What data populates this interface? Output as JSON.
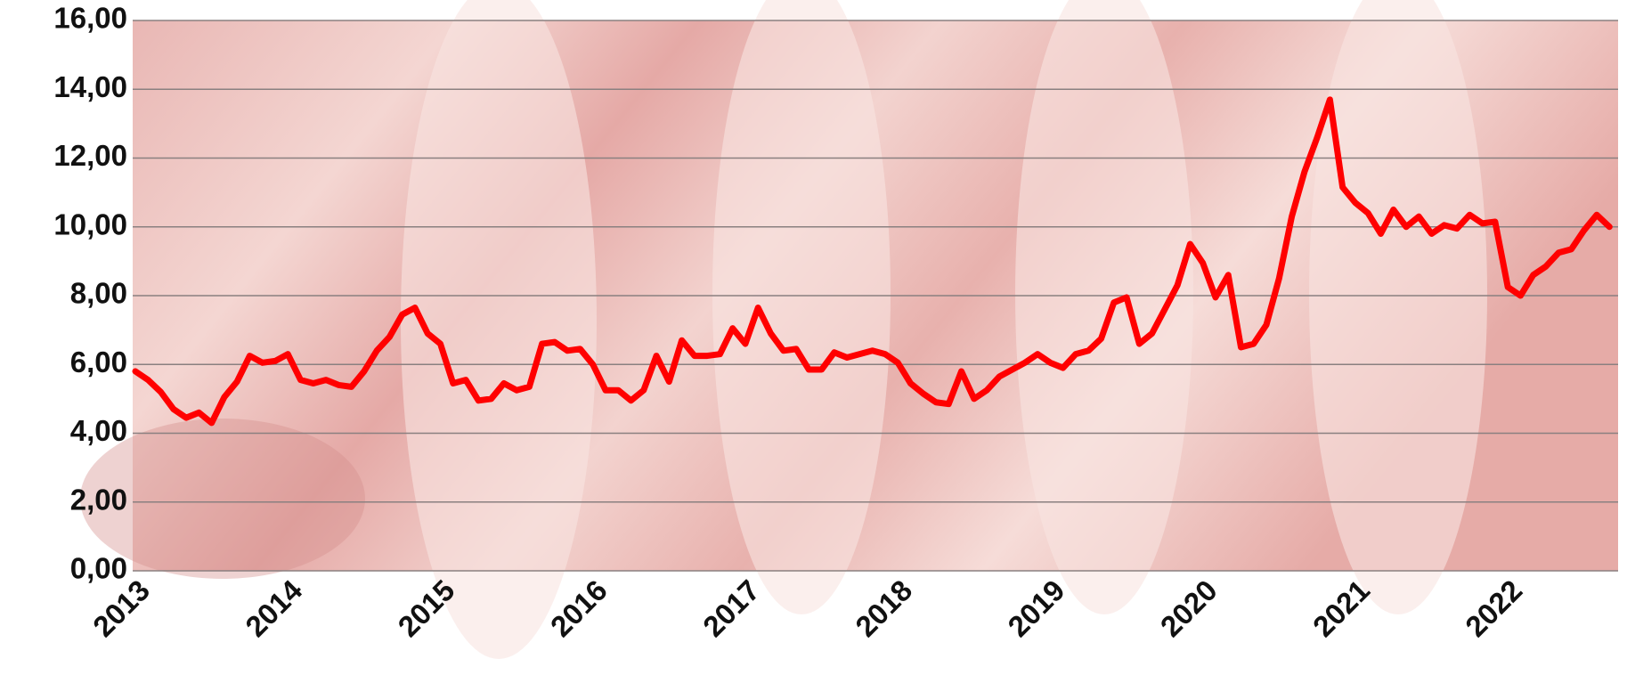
{
  "chart_data": {
    "type": "line",
    "categories": [
      "2013",
      null,
      null,
      null,
      null,
      null,
      null,
      null,
      null,
      null,
      null,
      null,
      "2014",
      null,
      null,
      null,
      null,
      null,
      null,
      null,
      null,
      null,
      null,
      null,
      "2015",
      null,
      null,
      null,
      null,
      null,
      null,
      null,
      null,
      null,
      null,
      null,
      "2016",
      null,
      null,
      null,
      null,
      null,
      null,
      null,
      null,
      null,
      null,
      null,
      "2017",
      null,
      null,
      null,
      null,
      null,
      null,
      null,
      null,
      null,
      null,
      null,
      "2018",
      null,
      null,
      null,
      null,
      null,
      null,
      null,
      null,
      null,
      null,
      null,
      "2019",
      null,
      null,
      null,
      null,
      null,
      null,
      null,
      null,
      null,
      null,
      null,
      "2020",
      null,
      null,
      null,
      null,
      null,
      null,
      null,
      null,
      null,
      null,
      null,
      "2021",
      null,
      null,
      null,
      null,
      null,
      null,
      null,
      null,
      null,
      null,
      null,
      "2022",
      null,
      null,
      null,
      null,
      null,
      null,
      null,
      null
    ],
    "series": [
      {
        "color": "#ff0000",
        "values": [
          5.8,
          5.55,
          5.2,
          4.7,
          4.45,
          4.6,
          4.3,
          5.05,
          5.5,
          6.25,
          6.05,
          6.1,
          6.3,
          5.55,
          5.45,
          5.55,
          5.4,
          5.35,
          5.8,
          6.4,
          6.8,
          7.45,
          7.65,
          6.9,
          6.6,
          5.45,
          5.55,
          4.95,
          5.0,
          5.45,
          5.25,
          5.35,
          6.6,
          6.65,
          6.4,
          6.45,
          6.0,
          5.25,
          5.25,
          4.95,
          5.25,
          6.25,
          5.5,
          6.7,
          6.25,
          6.25,
          6.3,
          7.05,
          6.6,
          7.65,
          6.9,
          6.4,
          6.45,
          5.85,
          5.85,
          6.35,
          6.2,
          6.3,
          6.4,
          6.3,
          6.05,
          5.45,
          5.15,
          4.9,
          4.85,
          5.8,
          5.0,
          5.25,
          5.65,
          5.85,
          6.05,
          6.3,
          6.05,
          5.9,
          6.3,
          6.4,
          6.75,
          7.8,
          7.95,
          6.6,
          6.9,
          7.6,
          8.3,
          9.5,
          8.95,
          7.95,
          8.6,
          6.5,
          6.6,
          7.15,
          8.5,
          10.3,
          11.6,
          12.6,
          13.7,
          11.15,
          10.7,
          10.4,
          9.8,
          10.5,
          10.0,
          10.3,
          9.8,
          10.05,
          9.95,
          10.35,
          10.1,
          10.15,
          8.25,
          8.0,
          8.6,
          8.85,
          9.25,
          9.35,
          9.9,
          10.35,
          10.0
        ]
      }
    ],
    "ylim": [
      0,
      16
    ],
    "yticks": [
      {
        "value": 0,
        "label": "0,00"
      },
      {
        "value": 2,
        "label": "2,00"
      },
      {
        "value": 4,
        "label": "4,00"
      },
      {
        "value": 6,
        "label": "6,00"
      },
      {
        "value": 8,
        "label": "8,00"
      },
      {
        "value": 10,
        "label": "10,00"
      },
      {
        "value": 12,
        "label": "12,00"
      },
      {
        "value": 14,
        "label": "14,00"
      },
      {
        "value": 16,
        "label": "16,00"
      }
    ],
    "grid": true
  }
}
